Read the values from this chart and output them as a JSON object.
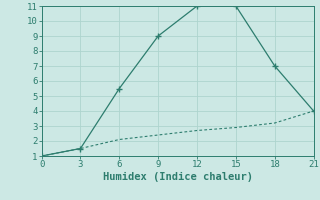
{
  "xlabel": "Humidex (Indice chaleur)",
  "line1_x": [
    0,
    3,
    6,
    9,
    12,
    15,
    18,
    21
  ],
  "line1_y": [
    1,
    1.5,
    5.5,
    9,
    11,
    11,
    7,
    4
  ],
  "line2_x": [
    0,
    3,
    6,
    9,
    12,
    15,
    18,
    21
  ],
  "line2_y": [
    1,
    1.5,
    2.1,
    2.4,
    2.7,
    2.9,
    3.2,
    4.0
  ],
  "line_color": "#2d7d6e",
  "bg_color": "#cce8e4",
  "grid_color": "#aed4ce",
  "xlim": [
    0,
    21
  ],
  "ylim": [
    1,
    11
  ],
  "xticks": [
    0,
    3,
    6,
    9,
    12,
    15,
    18,
    21
  ],
  "yticks": [
    1,
    2,
    3,
    4,
    5,
    6,
    7,
    8,
    9,
    10,
    11
  ],
  "tick_fontsize": 6.5,
  "xlabel_fontsize": 7.5
}
